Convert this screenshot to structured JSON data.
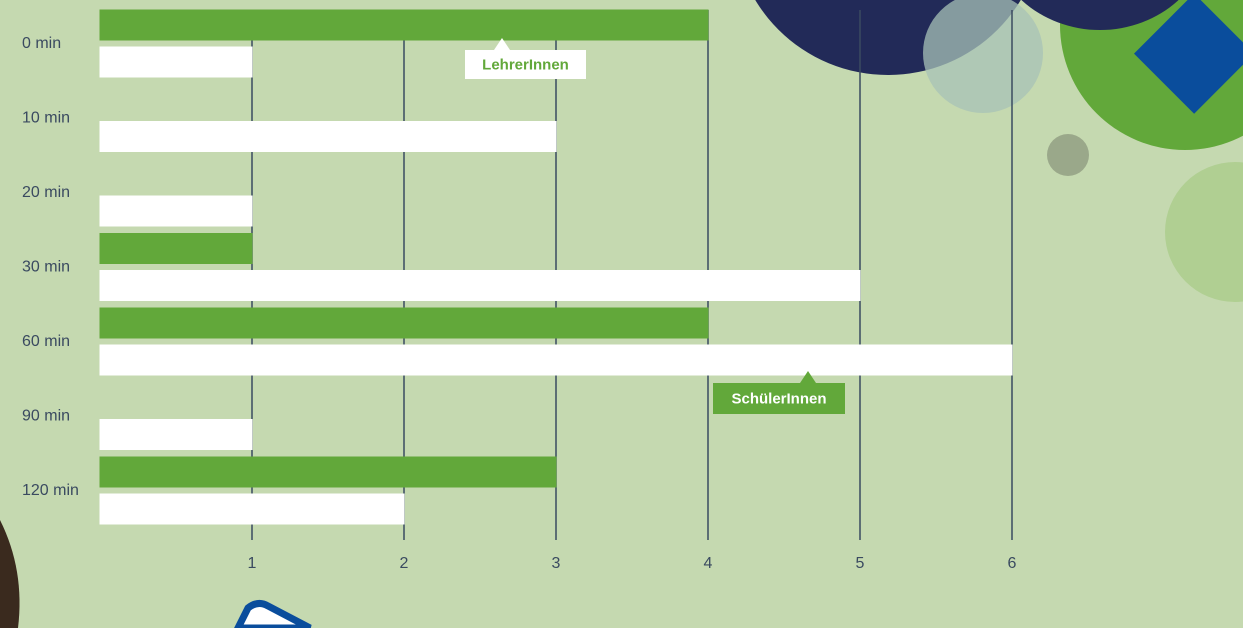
{
  "chart_data": {
    "type": "bar",
    "orientation": "horizontal",
    "categories": [
      "0 min",
      "10 min",
      "20 min",
      "30 min",
      "60 min",
      "90 min",
      "120 min"
    ],
    "series": [
      {
        "name": "LehrerInnen",
        "color": "#62a83a",
        "values": [
          4,
          0,
          0,
          1,
          4,
          0,
          3
        ]
      },
      {
        "name": "SchülerInnen",
        "color": "#ffffff",
        "values": [
          1,
          3,
          1,
          5,
          6,
          1,
          2
        ]
      }
    ],
    "xlim": [
      0,
      6
    ],
    "xticks": [
      1,
      2,
      3,
      4,
      5,
      6
    ],
    "grid": true
  }
}
